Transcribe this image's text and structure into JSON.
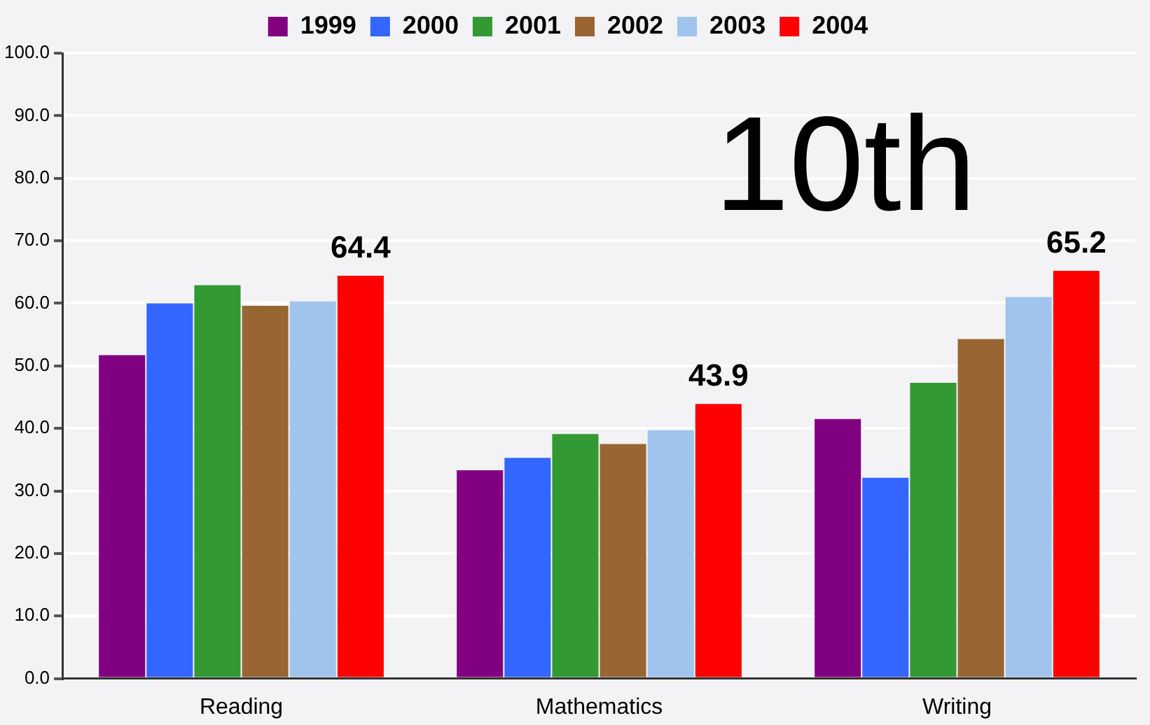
{
  "chart_data": {
    "type": "bar",
    "categories": [
      "Reading",
      "Mathematics",
      "Writing"
    ],
    "series": [
      {
        "name": "1999",
        "color": "#800080",
        "values": [
          51.7,
          33.3,
          41.5
        ]
      },
      {
        "name": "2000",
        "color": "#3366ff",
        "values": [
          60.0,
          35.3,
          32.1
        ]
      },
      {
        "name": "2001",
        "color": "#339933",
        "values": [
          62.9,
          39.1,
          47.3
        ]
      },
      {
        "name": "2002",
        "color": "#996633",
        "values": [
          59.6,
          37.5,
          54.3
        ]
      },
      {
        "name": "2003",
        "color": "#a0c4ec",
        "values": [
          60.3,
          39.7,
          61.0
        ]
      },
      {
        "name": "2004",
        "color": "#ff0000",
        "values": [
          64.4,
          43.9,
          65.2
        ],
        "value_labels": [
          "64.4",
          "43.9",
          "65.2"
        ]
      }
    ],
    "ylim": [
      0,
      100
    ],
    "yticks": [
      {
        "value": 0,
        "label": "0.0"
      },
      {
        "value": 10,
        "label": "10.0"
      },
      {
        "value": 20,
        "label": "20.0"
      },
      {
        "value": 30,
        "label": "30.0"
      },
      {
        "value": 40,
        "label": "40.0"
      },
      {
        "value": 50,
        "label": "50.0"
      },
      {
        "value": 60,
        "label": "60.0"
      },
      {
        "value": 70,
        "label": "70.0"
      },
      {
        "value": 80,
        "label": "80.0"
      },
      {
        "value": 90,
        "label": "90.0"
      },
      {
        "value": 100,
        "label": "100.0"
      }
    ],
    "grid": "y",
    "legend": "top",
    "annotations": [
      "10th"
    ]
  }
}
